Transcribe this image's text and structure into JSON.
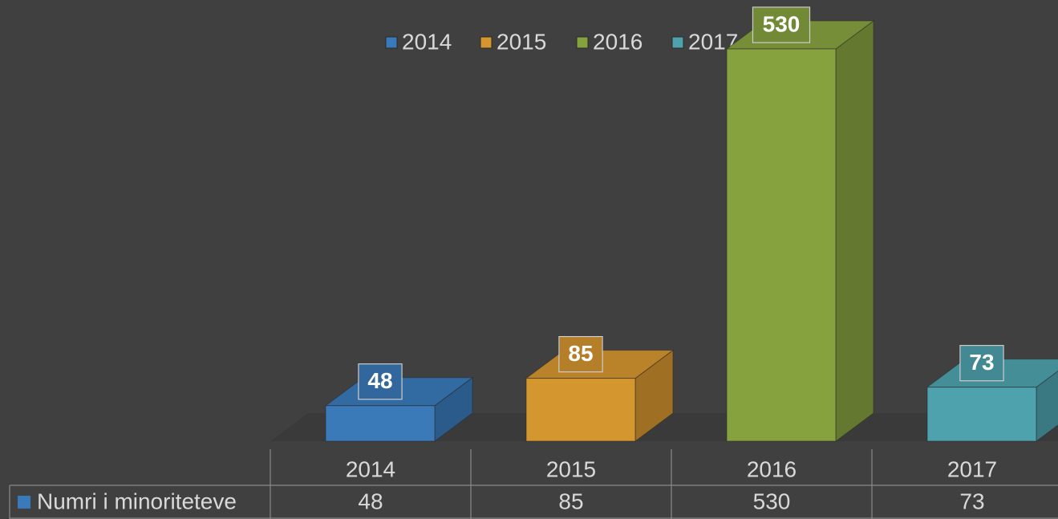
{
  "chart_data": {
    "type": "bar",
    "categories": [
      "2014",
      "2015",
      "2016",
      "2017"
    ],
    "series": [
      {
        "name": "Numri i minoriteteve",
        "color": "#3a7ab8",
        "values": [
          48,
          85,
          530,
          73
        ]
      }
    ],
    "colors": [
      "#3a7ab8",
      "#d4962f",
      "#86a23f",
      "#4ea2ad"
    ],
    "legend": "top",
    "data_table": true
  }
}
